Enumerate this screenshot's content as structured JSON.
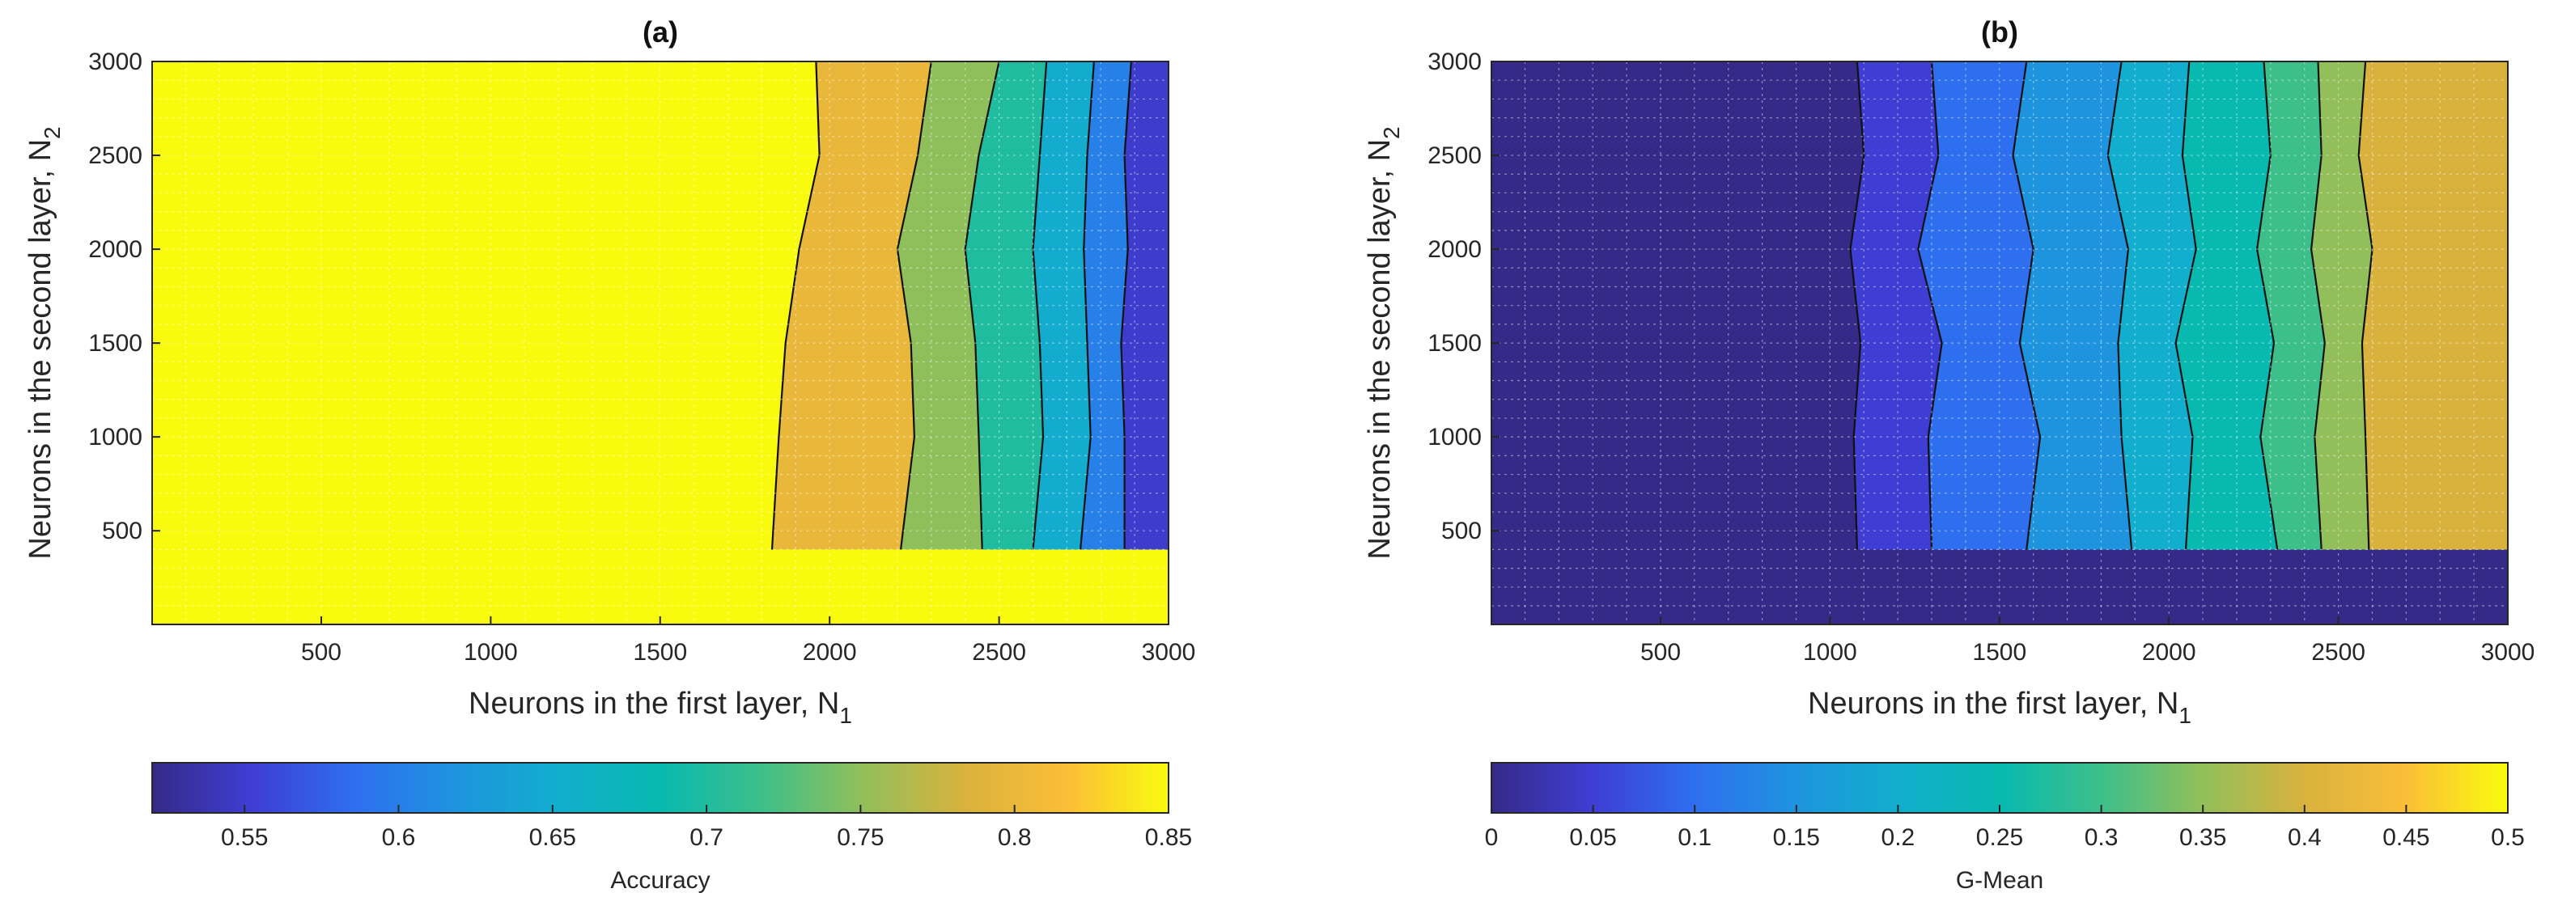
{
  "chart_data": [
    {
      "type": "contour",
      "title": "(a)",
      "xlabel": "Neurons in the first layer, N",
      "xlabel_sub": "1",
      "ylabel": "Neurons in the second layer, N",
      "ylabel_sub": "2",
      "xlim": [
        1,
        3000
      ],
      "ylim": [
        1,
        3000
      ],
      "xticks": [
        500,
        1000,
        1500,
        2000,
        2500,
        3000
      ],
      "yticks": [
        500,
        1000,
        1500,
        2000,
        2500,
        3000
      ],
      "grid": true,
      "levels": [
        0.85,
        0.8,
        0.75,
        0.7,
        0.65,
        0.6,
        0.55
      ],
      "boundaries_x_at_y": [
        {
          "level_between": [
            0.85,
            0.8
          ],
          "x": [
            1960,
            1970,
            1910,
            1870,
            1850,
            1830
          ]
        },
        {
          "level_between": [
            0.8,
            0.75
          ],
          "x": [
            2300,
            2260,
            2200,
            2240,
            2250,
            2210
          ]
        },
        {
          "level_between": [
            0.75,
            0.7
          ],
          "x": [
            2500,
            2440,
            2400,
            2430,
            2440,
            2450
          ]
        },
        {
          "level_between": [
            0.7,
            0.65
          ],
          "x": [
            2640,
            2620,
            2600,
            2620,
            2630,
            2600
          ]
        },
        {
          "level_between": [
            0.65,
            0.6
          ],
          "x": [
            2780,
            2760,
            2750,
            2760,
            2770,
            2740
          ]
        },
        {
          "level_between": [
            0.6,
            0.55
          ],
          "x": [
            2890,
            2870,
            2880,
            2860,
            2870,
            2870
          ]
        }
      ],
      "boundary_y_samples": [
        3000,
        2500,
        2000,
        1500,
        1000,
        400
      ],
      "colorbar": {
        "label": "Accuracy",
        "range": [
          0.52,
          0.85
        ],
        "ticks": [
          0.55,
          0.6,
          0.65,
          0.7,
          0.75,
          0.8,
          0.85
        ]
      }
    },
    {
      "type": "contour",
      "title": "(b)",
      "xlabel": "Neurons in the first layer, N",
      "xlabel_sub": "1",
      "ylabel": "Neurons in the second layer, N",
      "ylabel_sub": "2",
      "xlim": [
        1,
        3000
      ],
      "ylim": [
        1,
        3000
      ],
      "xticks": [
        500,
        1000,
        1500,
        2000,
        2500,
        3000
      ],
      "yticks": [
        500,
        1000,
        1500,
        2000,
        2500,
        3000
      ],
      "grid": true,
      "levels": [
        0.0,
        0.05,
        0.1,
        0.15,
        0.2,
        0.25,
        0.3,
        0.35,
        0.4,
        0.45,
        0.5
      ],
      "boundaries_x_at_y": [
        {
          "level_between": [
            0.0,
            0.05
          ],
          "x": [
            1080,
            1100,
            1060,
            1090,
            1070,
            1080
          ]
        },
        {
          "level_between": [
            0.05,
            0.1
          ],
          "x": [
            1300,
            1320,
            1260,
            1330,
            1290,
            1300
          ]
        },
        {
          "level_between": [
            0.1,
            0.15
          ],
          "x": [
            1580,
            1540,
            1600,
            1560,
            1620,
            1580
          ]
        },
        {
          "level_between": [
            0.15,
            0.2
          ],
          "x": [
            1860,
            1820,
            1880,
            1850,
            1860,
            1890
          ]
        },
        {
          "level_between": [
            0.2,
            0.25
          ],
          "x": [
            2060,
            2040,
            2080,
            2020,
            2070,
            2050
          ]
        },
        {
          "level_between": [
            0.25,
            0.3
          ],
          "x": [
            2280,
            2300,
            2260,
            2310,
            2270,
            2320
          ]
        },
        {
          "level_between": [
            0.3,
            0.35
          ],
          "x": [
            2440,
            2450,
            2420,
            2460,
            2430,
            2450
          ]
        },
        {
          "level_between": [
            0.35,
            0.4
          ],
          "x": [
            2580,
            2560,
            2600,
            2570,
            2580,
            2590
          ]
        }
      ],
      "boundary_y_samples": [
        3000,
        2500,
        2000,
        1500,
        1000,
        400
      ],
      "colorbar": {
        "label": "G-Mean",
        "range": [
          0,
          0.5
        ],
        "ticks": [
          0,
          0.05,
          0.1,
          0.15,
          0.2,
          0.25,
          0.3,
          0.35,
          0.4,
          0.45,
          0.5
        ]
      }
    }
  ]
}
